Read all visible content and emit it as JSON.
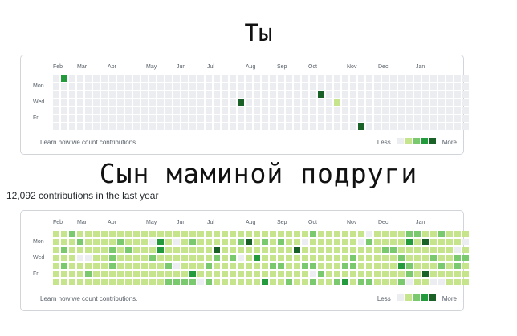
{
  "captions": {
    "you": "Ты",
    "mom_friend_son": "Сын маминой подруги"
  },
  "mom_panel_summary": "12,092 contributions in the last year",
  "months": [
    "Feb",
    "Mar",
    "Apr",
    "May",
    "Jun",
    "Jul",
    "Aug",
    "Sep",
    "Oct",
    "Nov",
    "Dec",
    "Jan"
  ],
  "day_labels": [
    "Mon",
    "Wed",
    "Fri"
  ],
  "learn_link": "Learn how we count contributions.",
  "legend": {
    "less": "Less",
    "more": "More"
  },
  "colors": [
    "#ebedf0",
    "#c6e48b",
    "#7bc96f",
    "#239a3b",
    "#196127"
  ],
  "you_graph": {
    "weeks": 52,
    "active_cells": [
      {
        "week": 1,
        "day": 0,
        "level": 3
      },
      {
        "week": 23,
        "day": 3,
        "level": 4
      },
      {
        "week": 33,
        "day": 2,
        "level": 4
      },
      {
        "week": 35,
        "day": 3,
        "level": 1
      },
      {
        "week": 38,
        "day": 6,
        "level": 4
      }
    ]
  },
  "mom_graph": {
    "weeks": 52,
    "seed": 12092,
    "base_level": 1,
    "dark_cells": [
      {
        "week": 20,
        "day": 2,
        "level": 4
      },
      {
        "week": 24,
        "day": 1,
        "level": 4
      },
      {
        "week": 30,
        "day": 2,
        "level": 4
      },
      {
        "week": 46,
        "day": 1,
        "level": 4
      },
      {
        "week": 46,
        "day": 5,
        "level": 4
      }
    ]
  }
}
